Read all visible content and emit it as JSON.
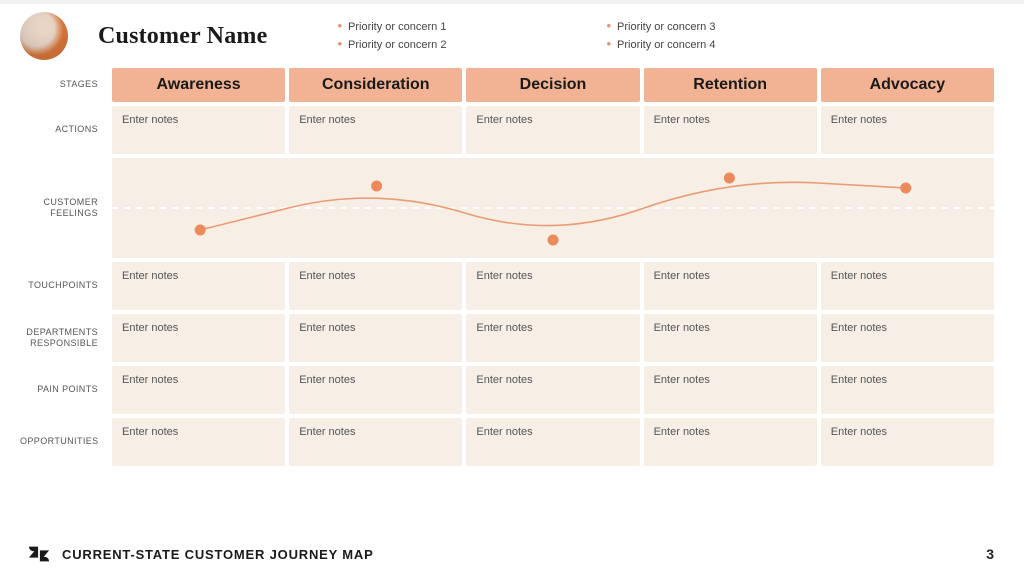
{
  "header": {
    "customer_name": "Customer Name",
    "priorities_col1": [
      "Priority or concern 1",
      "Priority or concern 2"
    ],
    "priorities_col2": [
      "Priority or concern 3",
      "Priority or concern 4"
    ]
  },
  "row_labels": {
    "stages": "STAGES",
    "actions": "ACTIONS",
    "feelings": "CUSTOMER FEELINGS",
    "touchpoints": "TOUCHPOINTS",
    "departments": "DEPARTMENTS RESPONSIBLE",
    "pain": "PAIN POINTS",
    "opportunities": "OPPORTUNITIES"
  },
  "stages": [
    "Awareness",
    "Consideration",
    "Decision",
    "Retention",
    "Advocacy"
  ],
  "cells": {
    "actions": [
      "Enter notes",
      "Enter notes",
      "Enter notes",
      "Enter notes",
      "Enter notes"
    ],
    "touchpoints": [
      "Enter notes",
      "Enter notes",
      "Enter notes",
      "Enter notes",
      "Enter notes"
    ],
    "departments": [
      "Enter notes",
      "Enter notes",
      "Enter notes",
      "Enter notes",
      "Enter notes"
    ],
    "pain": [
      "Enter notes",
      "Enter notes",
      "Enter notes",
      "Enter notes",
      "Enter notes"
    ],
    "opportunities": [
      "Enter notes",
      "Enter notes",
      "Enter notes",
      "Enter notes",
      "Enter notes"
    ]
  },
  "feelings_chart": {
    "type": "line",
    "y_range": [
      0,
      1
    ],
    "points_y": [
      0.28,
      0.72,
      0.18,
      0.8,
      0.7
    ],
    "line_color": "#e99b75",
    "line_width": 1.6,
    "dot_color": "#ec8a5c",
    "dot_radius": 5.5,
    "midline_color": "#ffffff",
    "midline_dash": "6 6",
    "cell_bg": "#f7eee6"
  },
  "colors": {
    "stage_header_bg": "#f1b393",
    "cell_bg": "#f7eee6",
    "accent": "#e8916a",
    "text": "#1a1a1a",
    "muted": "#555555"
  },
  "footer": {
    "title": "CURRENT-STATE CUSTOMER JOURNEY MAP",
    "page": "3"
  }
}
